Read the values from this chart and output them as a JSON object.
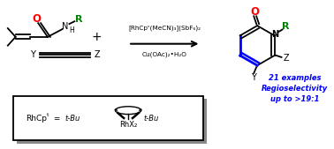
{
  "bg_color": "#ffffff",
  "red_color": "#ff0000",
  "green_color": "#008000",
  "blue_color": "#0000ff",
  "black_color": "#000000",
  "catalyst_line1": "[RhCpᶜ(MeCN)₃](SbF₆)₂",
  "catalyst_line2": "Cu(OAc)₂•H₂O",
  "examples_text1": "21 examples",
  "examples_text2": "Regioselectivity",
  "examples_text3": "up to >19:1",
  "figsize": [
    3.78,
    1.69
  ],
  "dpi": 100
}
